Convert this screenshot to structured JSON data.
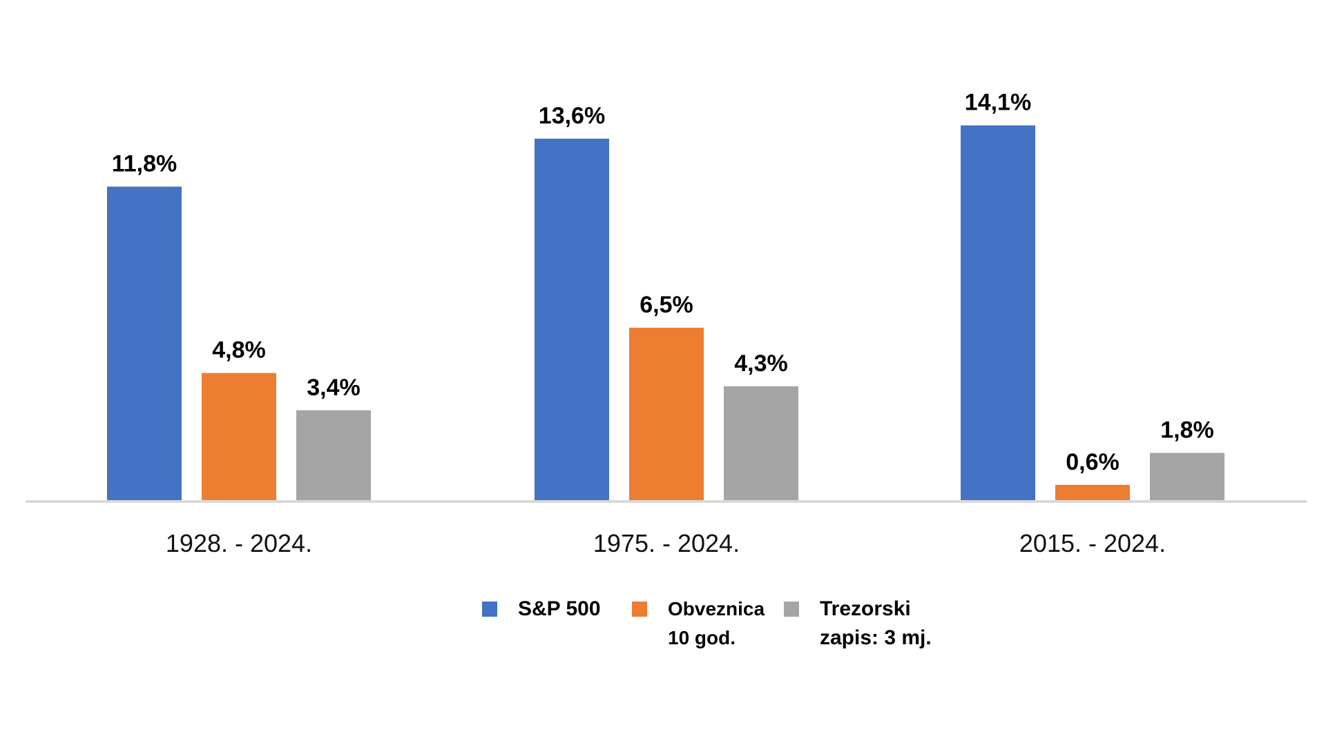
{
  "chart_data": {
    "type": "bar",
    "categories": [
      "1928. - 2024.",
      "1975. - 2024.",
      "2015. - 2024."
    ],
    "series": [
      {
        "name": "S&P 500",
        "name_lines": [
          "S&P 500"
        ],
        "color": "#4472C4",
        "values": [
          11.8,
          13.6,
          14.1
        ],
        "labels": [
          "11,8%",
          "13,6%",
          "14,1%"
        ]
      },
      {
        "name": "Obveznica 10 god.",
        "name_lines": [
          "Obveznica",
          "10 god."
        ],
        "color": "#ED7D31",
        "values": [
          4.8,
          6.5,
          0.6
        ],
        "labels": [
          "4,8%",
          "6,5%",
          "0,6%"
        ]
      },
      {
        "name": "Trezorski zapis: 3 mj.",
        "name_lines": [
          "Trezorski",
          "zapis: 3 mj."
        ],
        "color": "#A5A5A5",
        "values": [
          3.4,
          4.3,
          1.8
        ],
        "labels": [
          "3,4%",
          "4,3%",
          "1,8%"
        ]
      }
    ],
    "ylim": [
      0,
      16
    ],
    "grid": false,
    "legend": "bottom",
    "axis_color": "#D9D9D9",
    "title": "",
    "xlabel": "",
    "ylabel": ""
  }
}
